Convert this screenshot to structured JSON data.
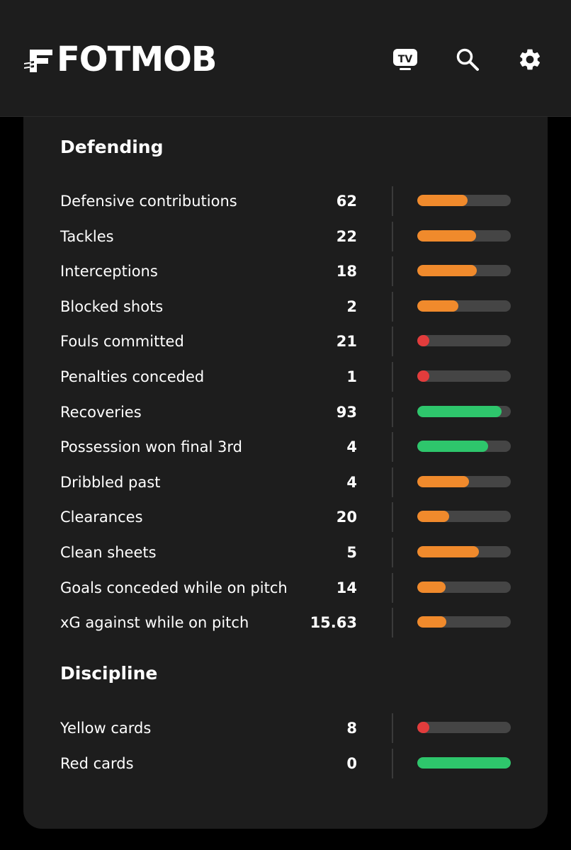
{
  "header": {
    "logo_text": "FOTMOB",
    "icons": [
      "tv-icon",
      "search-icon",
      "settings-gear-icon"
    ]
  },
  "colors": {
    "orange": "#f08a2c",
    "red": "#e23c3c",
    "green": "#2ec66c",
    "track": "#454545"
  },
  "sections": [
    {
      "title": "Defending",
      "stats": [
        {
          "label": "Defensive contributions",
          "value": "62",
          "percentile": 0.54,
          "color": "orange"
        },
        {
          "label": "Tackles",
          "value": "22",
          "percentile": 0.63,
          "color": "orange"
        },
        {
          "label": "Interceptions",
          "value": "18",
          "percentile": 0.64,
          "color": "orange"
        },
        {
          "label": "Blocked shots",
          "value": "2",
          "percentile": 0.44,
          "color": "orange"
        },
        {
          "label": "Fouls committed",
          "value": "21",
          "percentile": 0.13,
          "color": "red"
        },
        {
          "label": "Penalties conceded",
          "value": "1",
          "percentile": 0.13,
          "color": "red"
        },
        {
          "label": "Recoveries",
          "value": "93",
          "percentile": 0.9,
          "color": "green"
        },
        {
          "label": "Possession won final 3rd",
          "value": "4",
          "percentile": 0.76,
          "color": "green"
        },
        {
          "label": "Dribbled past",
          "value": "4",
          "percentile": 0.55,
          "color": "orange"
        },
        {
          "label": "Clearances",
          "value": "20",
          "percentile": 0.34,
          "color": "orange"
        },
        {
          "label": "Clean sheets",
          "value": "5",
          "percentile": 0.66,
          "color": "orange"
        },
        {
          "label": "Goals conceded while on pitch",
          "value": "14",
          "percentile": 0.3,
          "color": "orange"
        },
        {
          "label": "xG against while on pitch",
          "value": "15.63",
          "percentile": 0.31,
          "color": "orange"
        }
      ]
    },
    {
      "title": "Discipline",
      "stats": [
        {
          "label": "Yellow cards",
          "value": "8",
          "percentile": 0.13,
          "color": "red"
        },
        {
          "label": "Red cards",
          "value": "0",
          "percentile": 1.0,
          "color": "green"
        }
      ]
    }
  ]
}
